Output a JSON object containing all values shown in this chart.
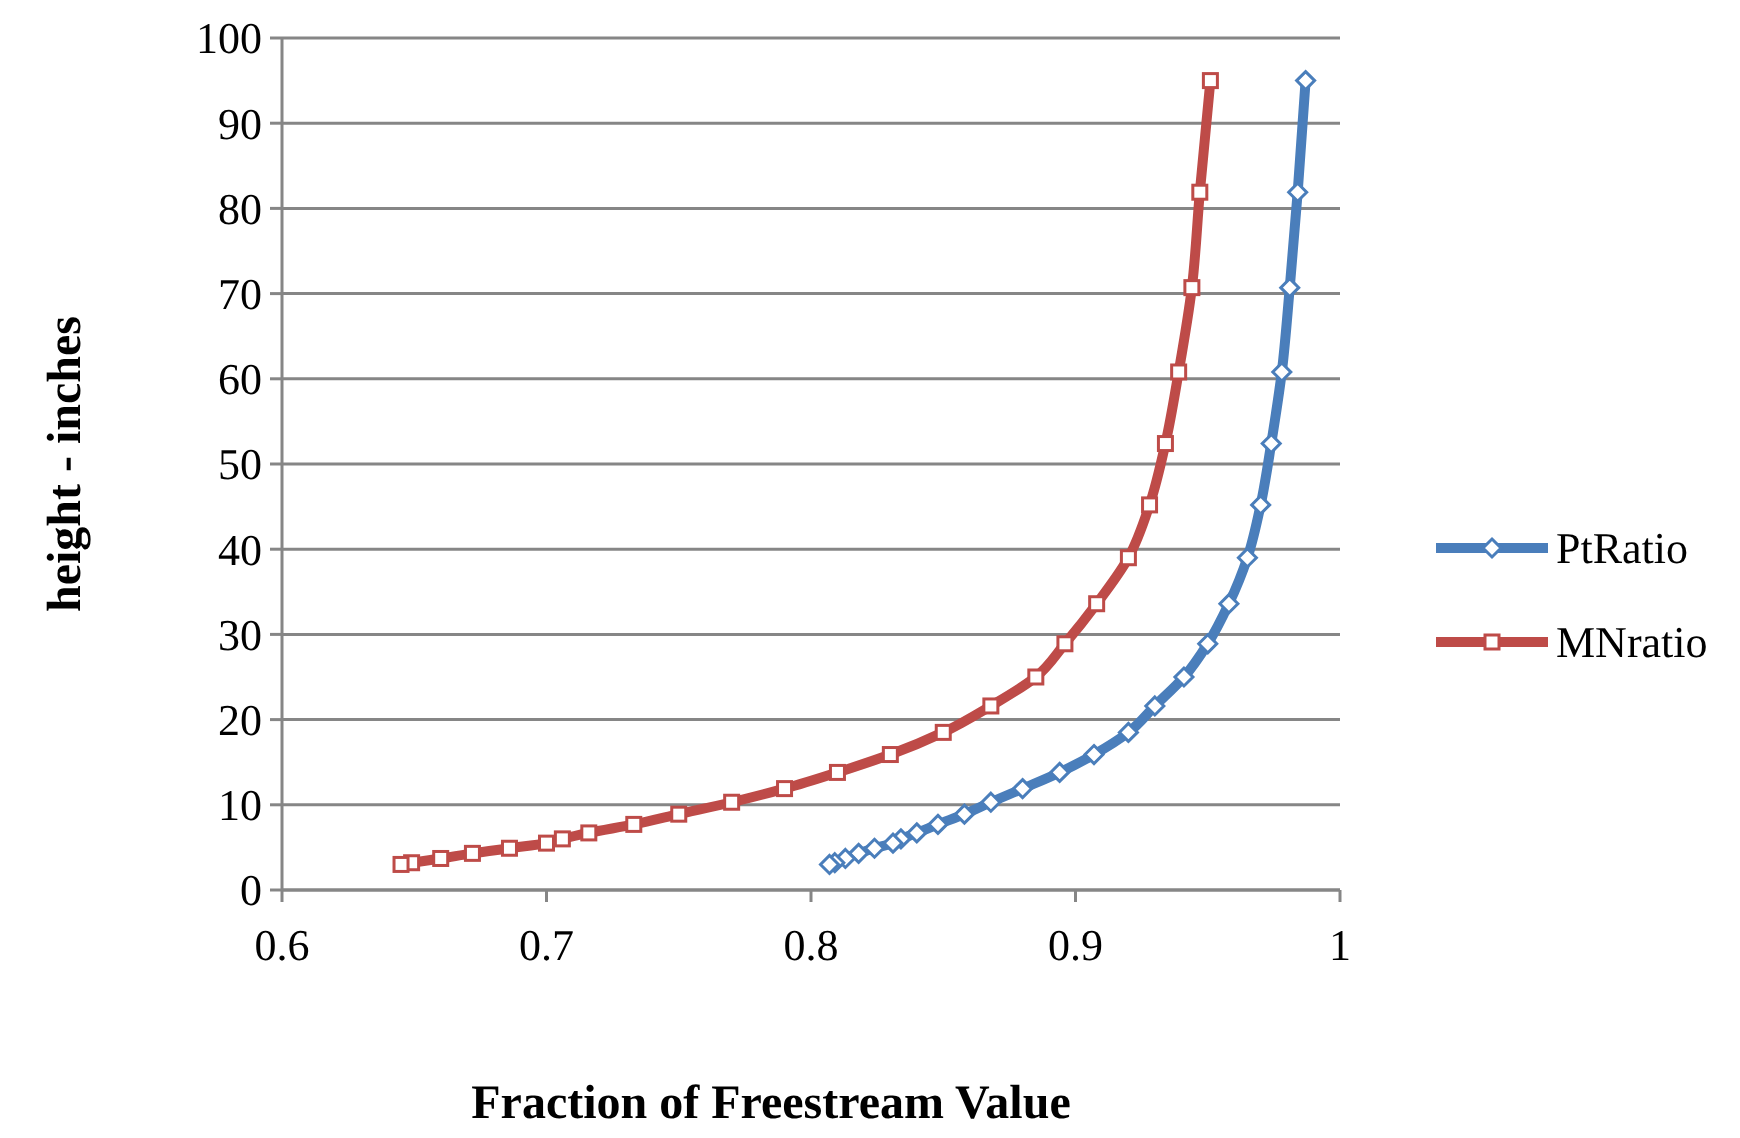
{
  "chart_data": {
    "type": "line",
    "xlabel": "Fraction of Freestream Value",
    "ylabel": "height - inches",
    "xlim": [
      0.6,
      1
    ],
    "xticks": [
      0.6,
      0.7,
      0.8,
      0.9,
      1
    ],
    "ylim": [
      0,
      100
    ],
    "yticks": [
      0,
      10,
      20,
      30,
      40,
      50,
      60,
      70,
      80,
      90,
      100
    ],
    "grid": "y",
    "legend": "right",
    "series": [
      {
        "name": "PtRatio",
        "color": "#4a7ebb",
        "marker": "diamond",
        "x": [
          0.807,
          0.809,
          0.813,
          0.818,
          0.824,
          0.831,
          0.834,
          0.84,
          0.848,
          0.858,
          0.868,
          0.88,
          0.894,
          0.907,
          0.92,
          0.93,
          0.941,
          0.95,
          0.958,
          0.965,
          0.97,
          0.974,
          0.978,
          0.981,
          0.984,
          0.987
        ],
        "values": [
          3.0,
          3.2,
          3.7,
          4.3,
          4.9,
          5.5,
          6.0,
          6.7,
          7.7,
          8.9,
          10.3,
          11.9,
          13.8,
          15.9,
          18.5,
          21.6,
          25.0,
          28.9,
          33.6,
          39.0,
          45.2,
          52.4,
          60.8,
          70.7,
          81.9,
          95.0
        ]
      },
      {
        "name": "MNratio",
        "color": "#be4b48",
        "marker": "square",
        "x": [
          0.645,
          0.649,
          0.66,
          0.672,
          0.686,
          0.7,
          0.706,
          0.716,
          0.733,
          0.75,
          0.77,
          0.79,
          0.81,
          0.83,
          0.85,
          0.868,
          0.885,
          0.896,
          0.908,
          0.92,
          0.928,
          0.934,
          0.939,
          0.944,
          0.947,
          0.951
        ],
        "values": [
          3.0,
          3.2,
          3.7,
          4.3,
          4.9,
          5.5,
          6.0,
          6.7,
          7.7,
          8.9,
          10.3,
          11.9,
          13.8,
          15.9,
          18.5,
          21.6,
          25.0,
          28.9,
          33.6,
          39.0,
          45.2,
          52.4,
          60.8,
          70.7,
          81.9,
          95.0
        ]
      }
    ]
  }
}
